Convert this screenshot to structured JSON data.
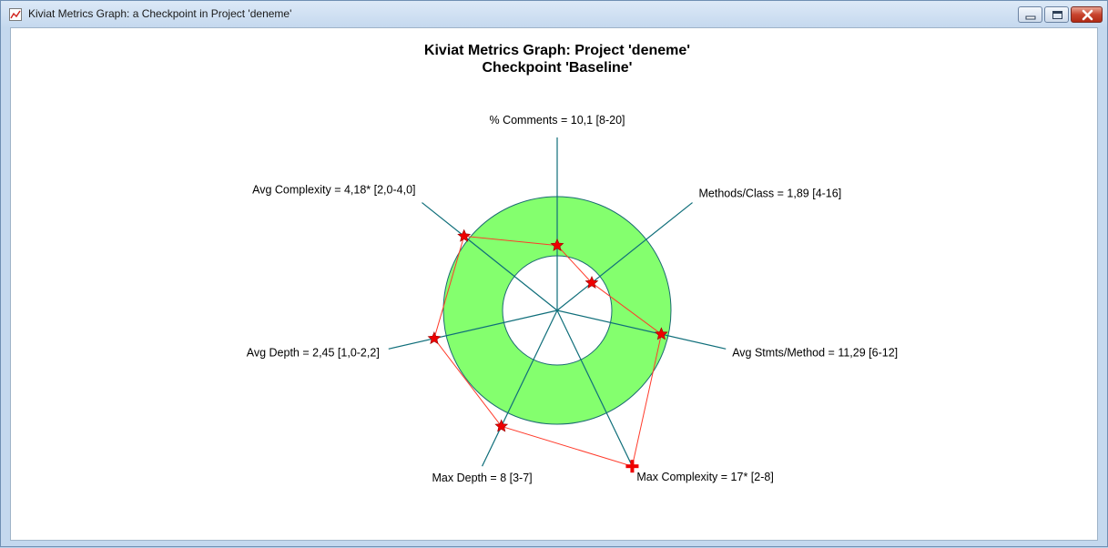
{
  "window": {
    "title": "Kiviat Metrics Graph: a Checkpoint in Project 'deneme'"
  },
  "graph": {
    "title_line1": "Kiviat Metrics Graph: Project 'deneme'",
    "title_line2": "Checkpoint 'Baseline'",
    "colors": {
      "ring_fill": "#84ff6e",
      "axis": "#0f6e7a",
      "ring_stroke": "#1a6a72",
      "polyline": "#ff3a2a",
      "marker": "#ee0000",
      "marker_stroke": "#990000"
    },
    "metrics": [
      {
        "label": "% Comments = 10,1 [8-20]",
        "value": 10.1,
        "min": 8,
        "max": 20,
        "marker": "star-icon"
      },
      {
        "label": "Methods/Class = 1,89 [4-16]",
        "value": 1.89,
        "min": 4,
        "max": 16,
        "marker": "star-icon"
      },
      {
        "label": "Avg Stmts/Method = 11,29 [6-12]",
        "value": 11.29,
        "min": 6,
        "max": 12,
        "marker": "star-icon"
      },
      {
        "label": "Max Complexity = 17* [2-8]",
        "value": 17,
        "min": 2,
        "max": 8,
        "marker": "cross-icon"
      },
      {
        "label": "Max Depth = 8 [3-7]",
        "value": 8,
        "min": 3,
        "max": 7,
        "marker": "star-icon"
      },
      {
        "label": "Avg Depth = 2,45 [1,0-2,2]",
        "value": 2.45,
        "min": 1.0,
        "max": 2.2,
        "marker": "star-icon"
      },
      {
        "label": "Avg Complexity = 4,18* [2,0-4,0]",
        "value": 4.18,
        "min": 2.0,
        "max": 4.0,
        "marker": "star-icon"
      }
    ]
  }
}
